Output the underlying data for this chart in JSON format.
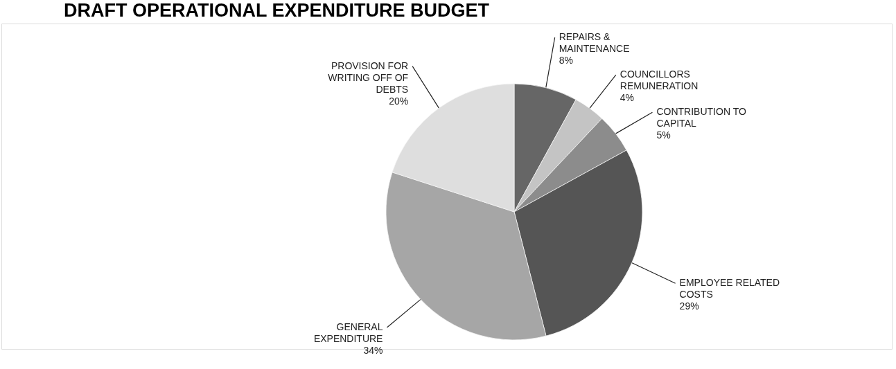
{
  "chart_data": {
    "type": "pie",
    "title": "DRAFT OPERATIONAL  EXPENDITURE BUDGET",
    "categories": [
      "REPAIRS & MAINTENANCE",
      "COUNCILLORS REMUNERATION",
      "CONTRIBUTION TO CAPITAL",
      "EMPLOYEE RELATED COSTS",
      "GENERAL EXPENDITURE",
      "PROVISION FOR WRITING OFF OF DEBTS"
    ],
    "values": [
      8,
      4,
      5,
      29,
      34,
      20
    ],
    "value_labels": [
      "8%",
      "4%",
      "5%",
      "29%",
      "34%",
      "20%"
    ],
    "colors": [
      "#666666",
      "#c4c4c4",
      "#8c8c8c",
      "#555555",
      "#a6a6a6",
      "#dedede"
    ],
    "legend": false
  }
}
